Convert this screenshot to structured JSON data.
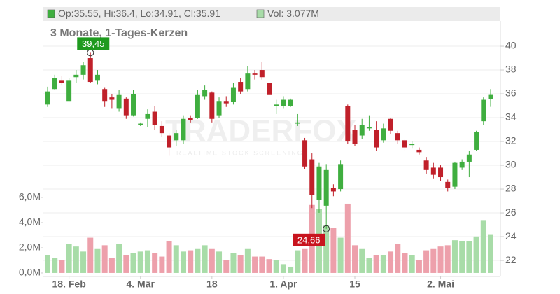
{
  "chart_data": {
    "type": "candlestick",
    "title": "3 Monate, 1-Tages-Kerzen",
    "legend": [
      {
        "color": "#3fae3f",
        "text": "Op:35.55, Hi:36.4, Lo:34.91, Cl:35.91"
      },
      {
        "color": "#a8dca8",
        "text": "Vol: 3.077M"
      }
    ],
    "watermark": "TRADERFOX",
    "watermark_subtitle": "REALTIME STOCK SCREENING",
    "categories": [
      null,
      null,
      null,
      "18. Feb",
      null,
      null,
      null,
      null,
      null,
      null,
      null,
      null,
      null,
      "4. Mär",
      null,
      null,
      null,
      null,
      null,
      null,
      null,
      null,
      null,
      "18",
      null,
      null,
      null,
      null,
      null,
      null,
      null,
      null,
      null,
      "1. Apr",
      null,
      null,
      null,
      null,
      null,
      null,
      null,
      null,
      null,
      "15",
      null,
      null,
      null,
      null,
      null,
      null,
      null,
      null,
      null,
      null,
      null,
      "2. Mai",
      null,
      null,
      null,
      null,
      null,
      null,
      null
    ],
    "open": [
      35.1,
      36.4,
      37.1,
      35.4,
      37.4,
      37.6,
      39.0,
      37.1,
      36.4,
      35.7,
      34.8,
      35.6,
      34.2,
      33.5,
      33.9,
      34.5,
      33.3,
      32.5,
      32.1,
      32.1,
      34.0,
      34.0,
      35.8,
      36.1,
      34.2,
      35.4,
      35.3,
      37.0,
      36.4,
      37.7,
      38.0,
      36.9,
      35.0,
      35.0,
      35.0,
      33.5,
      32.1,
      30.5,
      27.1,
      26.6,
      28.1,
      28.0,
      35.0,
      33.0,
      32.5,
      33.1,
      33.0,
      32.1,
      33.9,
      32.7,
      32.1,
      31.7,
      31.3,
      30.4,
      29.8,
      29.8,
      28.6,
      28.2,
      29.8,
      30.3,
      31.3,
      33.7,
      35.55
    ],
    "high": [
      36.6,
      37.6,
      37.5,
      37.3,
      38.0,
      38.7,
      39.45,
      38.0,
      36.5,
      36.0,
      36.3,
      35.7,
      36.3,
      33.6,
      34.7,
      35.0,
      33.7,
      32.7,
      33.0,
      34.2,
      34.2,
      36.3,
      36.7,
      36.2,
      35.7,
      35.8,
      36.9,
      37.3,
      38.3,
      38.0,
      38.7,
      37.0,
      35.5,
      35.8,
      35.6,
      34.3,
      32.3,
      31.0,
      30.2,
      30.1,
      28.4,
      30.4,
      35.1,
      33.4,
      33.9,
      34.2,
      33.7,
      33.5,
      34.0,
      32.9,
      32.2,
      32.0,
      31.5,
      30.7,
      30.2,
      30.0,
      28.8,
      30.3,
      30.5,
      31.2,
      32.9,
      35.7,
      36.4
    ],
    "low": [
      34.9,
      36.3,
      36.7,
      35.4,
      36.9,
      37.2,
      36.9,
      36.8,
      34.9,
      34.8,
      34.5,
      33.9,
      34.1,
      33.3,
      33.2,
      33.0,
      32.4,
      30.8,
      31.6,
      31.8,
      33.6,
      33.9,
      35.5,
      33.6,
      34.0,
      34.9,
      35.1,
      36.0,
      36.2,
      37.2,
      37.2,
      35.8,
      34.3,
      34.8,
      34.9,
      33.3,
      29.7,
      26.4,
      26.0,
      24.66,
      27.4,
      27.8,
      31.8,
      31.6,
      32.2,
      32.9,
      31.2,
      31.9,
      32.6,
      31.8,
      31.2,
      31.4,
      30.9,
      29.3,
      28.9,
      28.7,
      27.8,
      28.0,
      29.6,
      29.0,
      31.2,
      33.4,
      34.91
    ],
    "close": [
      36.2,
      37.3,
      36.9,
      37.1,
      37.6,
      38.4,
      37.0,
      37.6,
      35.4,
      35.5,
      35.9,
      34.2,
      36.0,
      33.5,
      34.3,
      33.4,
      32.7,
      31.5,
      32.7,
      33.9,
      33.8,
      35.9,
      36.3,
      33.9,
      35.4,
      35.2,
      36.5,
      36.2,
      37.7,
      37.6,
      37.4,
      35.9,
      35.1,
      35.5,
      35.5,
      33.6,
      29.9,
      27.5,
      29.9,
      29.6,
      27.8,
      30.1,
      32.0,
      31.8,
      33.4,
      33.2,
      31.5,
      33.1,
      32.9,
      32.1,
      31.5,
      31.8,
      31.1,
      29.6,
      29.2,
      29.0,
      28.1,
      30.2,
      30.3,
      30.9,
      32.8,
      35.5,
      35.91
    ],
    "volume": [
      1.4,
      1.2,
      1.0,
      2.3,
      2.1,
      1.7,
      2.8,
      1.9,
      2.2,
      1.2,
      2.3,
      1.4,
      1.6,
      1.7,
      1.8,
      1.6,
      1.3,
      2.5,
      2.2,
      1.7,
      1.8,
      1.9,
      2.2,
      1.9,
      1.7,
      1.0,
      1.6,
      1.4,
      1.9,
      1.3,
      1.3,
      1.1,
      1.0,
      0.7,
      0.5,
      1.8,
      1.9,
      5.4,
      5.1,
      3.8,
      3.6,
      2.8,
      5.5,
      2.2,
      1.9,
      1.2,
      1.4,
      1.4,
      1.7,
      2.3,
      1.6,
      1.4,
      1.0,
      1.8,
      1.9,
      2.1,
      2.2,
      2.6,
      2.5,
      2.5,
      2.9,
      4.2,
      3.077
    ],
    "up_color": "#3fae3f",
    "down_color": "#c0202a",
    "volume_up_color": "#a8dca8",
    "volume_down_color": "#eda0ab",
    "ylim": [
      20.65,
      42.12
    ],
    "yticks": [
      22,
      24,
      26,
      28,
      30,
      32,
      34,
      36,
      38,
      40
    ],
    "y2lim": [
      -0.28,
      20
    ],
    "y2ticks": [
      {
        "value": 0,
        "label": "0,0M"
      },
      {
        "value": 2,
        "label": "2,0M"
      },
      {
        "value": 4,
        "label": "4,0M"
      },
      {
        "value": 6,
        "label": "6,0M"
      }
    ],
    "annotations": [
      {
        "value": 39.45,
        "label": "39,45"
      },
      {
        "value": 24.66,
        "label": "24,66"
      }
    ],
    "grid": true
  }
}
